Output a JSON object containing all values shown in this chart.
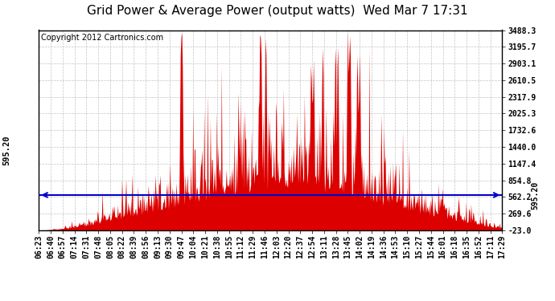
{
  "title": "Grid Power & Average Power (output watts)  Wed Mar 7 17:31",
  "copyright": "Copyright 2012 Cartronics.com",
  "avg_line_value": 595.2,
  "avg_label": "595.20",
  "y_min": -23.0,
  "y_max": 3488.3,
  "ytick_values": [
    3488.3,
    3195.7,
    2903.1,
    2610.5,
    2317.9,
    2025.3,
    1732.6,
    1440.0,
    1147.4,
    854.8,
    562.2,
    269.6,
    -23.0
  ],
  "x_labels": [
    "06:23",
    "06:40",
    "06:57",
    "07:14",
    "07:31",
    "07:48",
    "08:05",
    "08:22",
    "08:39",
    "08:56",
    "09:13",
    "09:30",
    "09:47",
    "10:04",
    "10:21",
    "10:38",
    "10:55",
    "11:12",
    "11:29",
    "11:46",
    "12:03",
    "12:20",
    "12:37",
    "12:54",
    "13:11",
    "13:28",
    "13:45",
    "14:02",
    "14:19",
    "14:36",
    "14:53",
    "15:10",
    "15:27",
    "15:44",
    "16:01",
    "16:18",
    "16:35",
    "16:52",
    "17:11",
    "17:29"
  ],
  "background_color": "#ffffff",
  "plot_bg_color": "#ffffff",
  "grid_color": "#aaaaaa",
  "line_color": "#0000cc",
  "fill_color": "#dd0000",
  "border_color": "#000000",
  "title_fontsize": 11,
  "copyright_fontsize": 7,
  "tick_fontsize": 7
}
